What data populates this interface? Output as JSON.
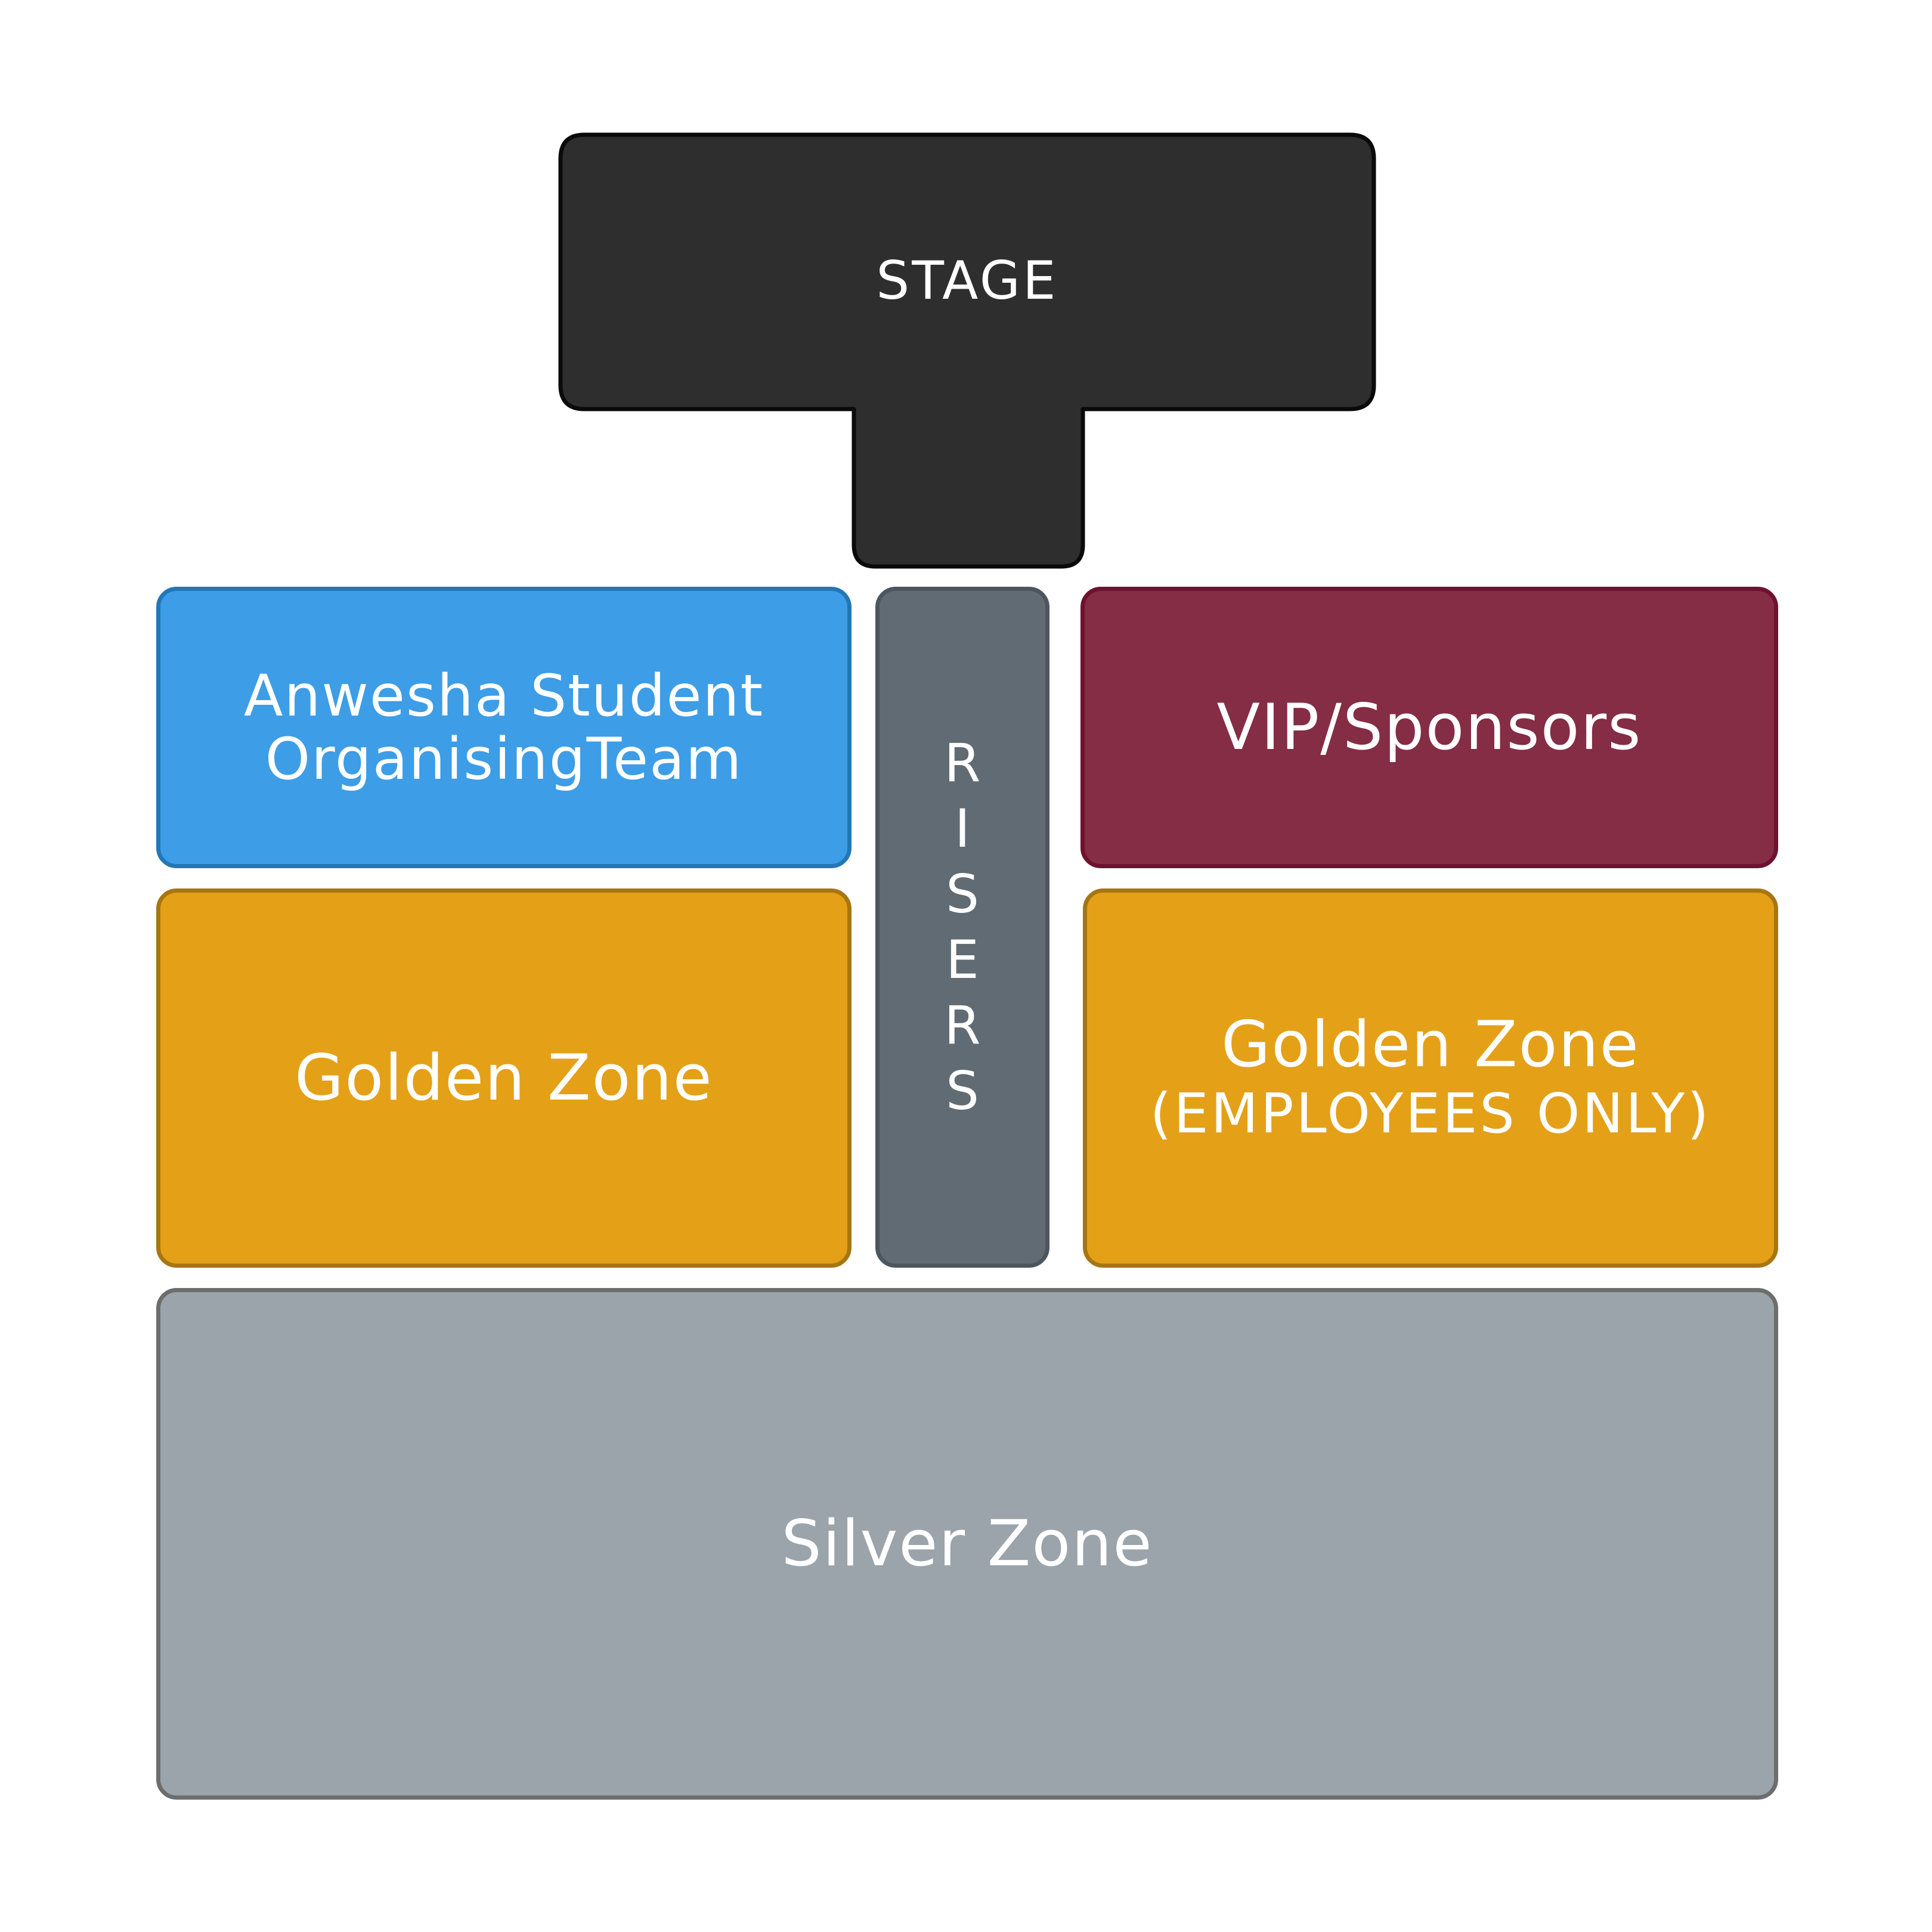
{
  "stage": {
    "label": "STAGE",
    "color": "#2e2e2e",
    "border": "#0a0a0a"
  },
  "zones": {
    "student_team": {
      "line1": "Anwesha Student",
      "line2": "OrganisingTeam",
      "color": "#3d9de6",
      "border": "#2377b7"
    },
    "vip": {
      "label": "VIP/Sponsors",
      "color": "#842d45",
      "border": "#6e1230"
    },
    "golden_left": {
      "label": "Golden Zone",
      "color": "#e4a017",
      "border": "#a77612"
    },
    "golden_right": {
      "label": "Golden Zone",
      "sub": "(EMPLOYEES ONLY)",
      "color": "#e4a017",
      "border": "#a77612"
    },
    "silver": {
      "label": "Silver Zone",
      "color": "#9aa4aa",
      "border": "#6d6d6d"
    }
  },
  "risers": {
    "letters": [
      "R",
      "I",
      "S",
      "E",
      "R",
      "S"
    ],
    "color": "#606b73",
    "border": "#4d565e"
  }
}
